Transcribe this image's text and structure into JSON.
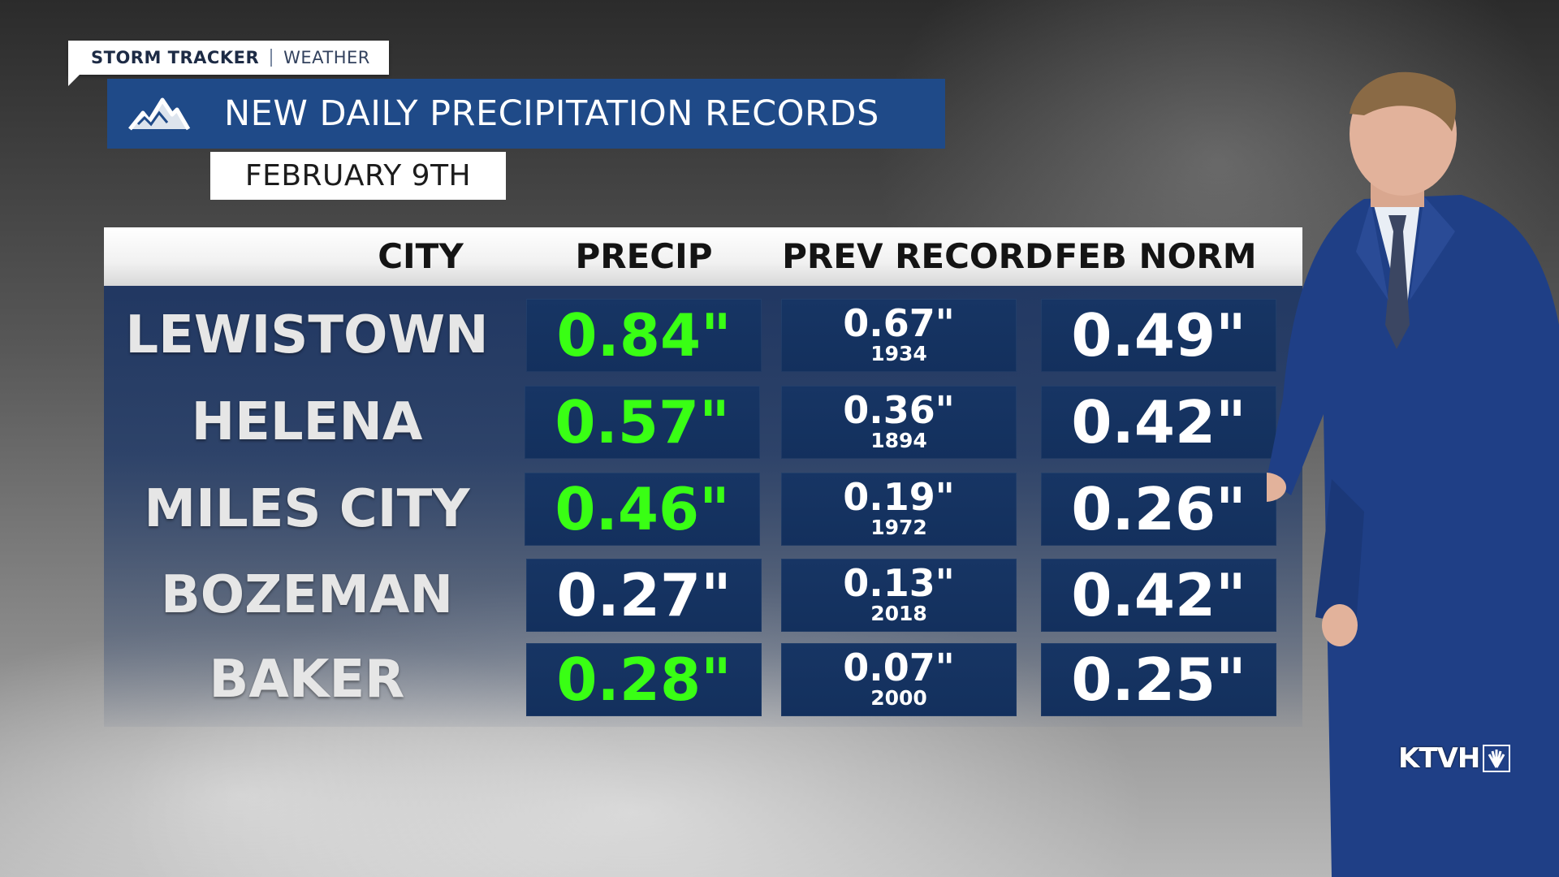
{
  "brand": {
    "primary": "STORM TRACKER",
    "secondary": "WEATHER"
  },
  "title": "NEW DAILY PRECIPITATION RECORDS",
  "date": "FEBRUARY 9TH",
  "table": {
    "headers": {
      "city": "CITY",
      "precip": "PRECIP",
      "prev_record": "PREV RECORD",
      "feb_norm": "FEB NORM"
    },
    "rows": [
      {
        "city": "LEWISTOWN",
        "precip": "0.84\"",
        "precip_is_record": true,
        "prev_value": "0.67\"",
        "prev_year": "1934",
        "norm": "0.49\""
      },
      {
        "city": "HELENA",
        "precip": "0.57\"",
        "precip_is_record": true,
        "prev_value": "0.36\"",
        "prev_year": "1894",
        "norm": "0.42\""
      },
      {
        "city": "MILES CITY",
        "precip": "0.46\"",
        "precip_is_record": true,
        "prev_value": "0.19\"",
        "prev_year": "1972",
        "norm": "0.26\""
      },
      {
        "city": "BOZEMAN",
        "precip": "0.27\"",
        "precip_is_record": false,
        "prev_value": "0.13\"",
        "prev_year": "2018",
        "norm": "0.42\""
      },
      {
        "city": "BAKER",
        "precip": "0.28\"",
        "precip_is_record": true,
        "prev_value": "0.07\"",
        "prev_year": "2000",
        "norm": "0.25\""
      }
    ]
  },
  "station": "KTVH",
  "colors": {
    "record_green": "#39ff14",
    "normal_white": "#ffffff",
    "title_blue": "#1f4a88"
  },
  "icons": {
    "title": "mountain-icon",
    "station": "peacock-icon"
  }
}
